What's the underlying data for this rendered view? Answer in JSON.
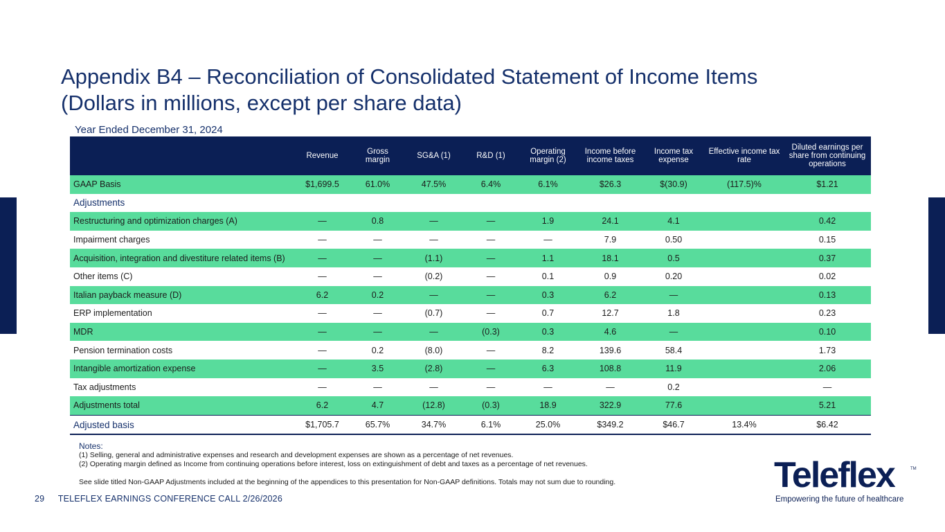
{
  "title_line1": "Appendix B4 – Reconciliation of Consolidated Statement of Income Items",
  "title_line2": "(Dollars in millions, except per share data)",
  "subtitle": "Year Ended December 31, 2024",
  "columns": [
    "",
    "Revenue",
    "Gross margin",
    "SG&A (1)",
    "R&D (1)",
    "Operating margin (2)",
    "Income before income taxes",
    "Income tax expense",
    "Effective income tax rate",
    "Diluted earnings per share from continuing operations"
  ],
  "rows": [
    [
      "GAAP Basis",
      "$1,699.5",
      "61.0%",
      "47.5%",
      "6.4%",
      "6.1%",
      "$26.3",
      "$(30.9)",
      "(117.5)%",
      "$1.21"
    ],
    [
      "Adjustments",
      "",
      "",
      "",
      "",
      "",
      "",
      "",
      "",
      ""
    ],
    [
      "Restructuring and optimization charges (A)",
      "—",
      "0.8",
      "—",
      "—",
      "1.9",
      "24.1",
      "4.1",
      "",
      "0.42"
    ],
    [
      "Impairment charges",
      "—",
      "—",
      "—",
      "—",
      "—",
      "7.9",
      "0.50",
      "",
      "0.15"
    ],
    [
      "Acquisition, integration and divestiture related items (B)",
      "—",
      "—",
      "(1.1)",
      "—",
      "1.1",
      "18.1",
      "0.5",
      "",
      "0.37"
    ],
    [
      "Other items (C)",
      "—",
      "—",
      "(0.2)",
      "—",
      "0.1",
      "0.9",
      "0.20",
      "",
      "0.02"
    ],
    [
      "Italian payback measure (D)",
      "6.2",
      "0.2",
      "—",
      "—",
      "0.3",
      "6.2",
      "—",
      "",
      "0.13"
    ],
    [
      "ERP implementation",
      "—",
      "—",
      "(0.7)",
      "—",
      "0.7",
      "12.7",
      "1.8",
      "",
      "0.23"
    ],
    [
      "MDR",
      "—",
      "—",
      "—",
      "(0.3)",
      "0.3",
      "4.6",
      "—",
      "",
      "0.10"
    ],
    [
      "Pension termination costs",
      "—",
      "0.2",
      "(8.0)",
      "—",
      "8.2",
      "139.6",
      "58.4",
      "",
      "1.73"
    ],
    [
      "Intangible amortization expense",
      "—",
      "3.5",
      "(2.8)",
      "—",
      "6.3",
      "108.8",
      "11.9",
      "",
      "2.06"
    ],
    [
      "Tax adjustments",
      "—",
      "—",
      "—",
      "—",
      "—",
      "—",
      "0.2",
      "",
      "—"
    ],
    [
      "Adjustments total",
      "6.2",
      "4.7",
      "(12.8)",
      "(0.3)",
      "18.9",
      "322.9",
      "77.6",
      "",
      "5.21"
    ],
    [
      "Adjusted basis",
      "$1,705.7",
      "65.7%",
      "34.7%",
      "6.1%",
      "25.0%",
      "$349.2",
      "$46.7",
      "13.4%",
      "$6.42"
    ]
  ],
  "notes": {
    "heading": "Notes:",
    "note1": "(1) Selling, general and administrative expenses and research and development expenses are shown as a percentage of net revenues.",
    "note2": "(2) Operating margin defined as Income from continuing operations before interest, loss on extinguishment of debt and taxes as a percentage of net revenues.",
    "note3": "See slide titled Non-GAAP Adjustments included at the beginning of the appendices to this presentation for Non-GAAP definitions. Totals may not sum due to rounding."
  },
  "footer": {
    "page_number": "29",
    "text": "TELEFLEX EARNINGS CONFERENCE CALL 2/26/2026"
  },
  "logo": {
    "brand": "Teleflex",
    "trademark": "TM",
    "tagline": "Empowering the future of healthcare"
  },
  "colors": {
    "navy": "#0b1f55",
    "title_blue": "#15306b",
    "row_green": "#58dc9c"
  }
}
